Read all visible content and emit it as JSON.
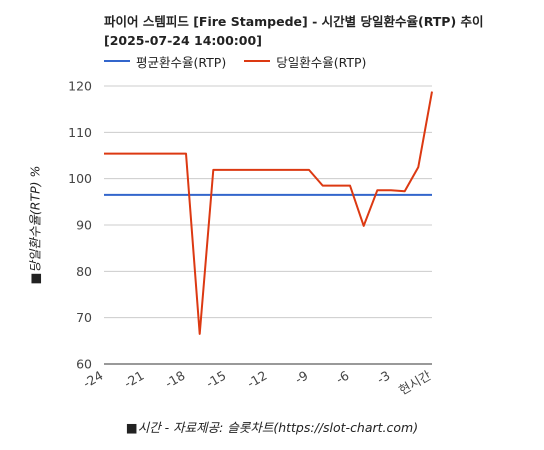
{
  "title_line1": "파이어 스템피드 [Fire Stampede] - 시간별 당일환수율(RTP) 추이",
  "title_line2": "[2025-07-24 14:00:00]",
  "chart_data": {
    "type": "line",
    "title": "파이어 스템피드 [Fire Stampede] - 시간별 당일환수율(RTP) 추이 [2025-07-24 14:00:00]",
    "xlabel": "■시간 - 자료제공: 슬롯차트(https://slot-chart.com)",
    "ylabel": "■당일환수율(RTP) %",
    "x": [
      -24,
      -23,
      -22,
      -21,
      -20,
      -19,
      -18,
      -17,
      -16,
      -15,
      -14,
      -13,
      -12,
      -11,
      -10,
      -9,
      -8,
      -7,
      -6,
      -5,
      -4,
      -3,
      -2,
      -1,
      0
    ],
    "x_tick_labels": [
      "-24",
      "-21",
      "-18",
      "-15",
      "-12",
      "-9",
      "-6",
      "-3",
      "현시간"
    ],
    "x_tick_values": [
      -24,
      -21,
      -18,
      -15,
      -12,
      -9,
      -6,
      -3,
      0
    ],
    "y_ticks": [
      60,
      70,
      80,
      90,
      100,
      110,
      120
    ],
    "ylim": [
      60,
      120
    ],
    "xlim": [
      -24,
      0
    ],
    "grid": "horizontal",
    "legend_position": "top-left",
    "series": [
      {
        "name": "평균환수율(RTP)",
        "color": "#3366cc",
        "values": [
          96.5,
          96.5,
          96.5,
          96.5,
          96.5,
          96.5,
          96.5,
          96.5,
          96.5,
          96.5,
          96.5,
          96.5,
          96.5,
          96.5,
          96.5,
          96.5,
          96.5,
          96.5,
          96.5,
          96.5,
          96.5,
          96.5,
          96.5,
          96.5,
          96.5
        ]
      },
      {
        "name": "당일환수율(RTP)",
        "color": "#dc3912",
        "values": [
          105.4,
          105.4,
          105.4,
          105.4,
          105.4,
          105.4,
          105.4,
          66.5,
          101.9,
          101.9,
          101.9,
          101.9,
          101.9,
          101.9,
          101.9,
          101.9,
          98.5,
          98.5,
          98.5,
          89.8,
          97.5,
          97.5,
          97.3,
          102.5,
          118.8
        ]
      }
    ]
  }
}
